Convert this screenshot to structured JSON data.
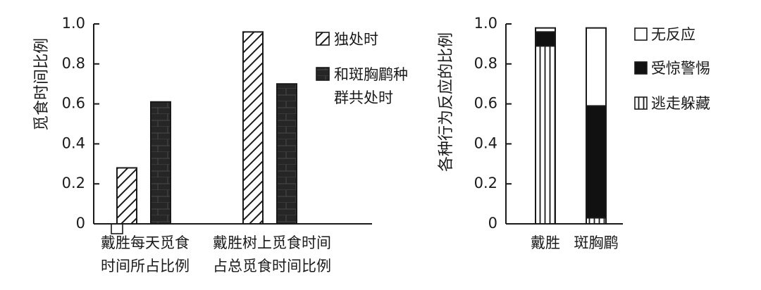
{
  "chart_data": [
    {
      "type": "bar",
      "ylabel": "觅食时间比例",
      "ylim": [
        0,
        1.0
      ],
      "yticks": [
        "0",
        "0.2",
        "0.4",
        "0.6",
        "0.8",
        "1.0"
      ],
      "categories": [
        [
          "戴胜每天觅食",
          "时间所占比例"
        ],
        [
          "戴胜树上觅食时间",
          "占总觅食时间比例"
        ]
      ],
      "series": [
        {
          "name": "独处时",
          "pattern": "diagonal-hatch",
          "values": [
            0.28,
            0.96
          ]
        },
        {
          "name": "和斑胸鹛种群共处时",
          "name_lines": [
            "和斑胸鹛种",
            "群共处时"
          ],
          "pattern": "dark-brick",
          "color": "#262626",
          "values": [
            0.61,
            0.7
          ]
        }
      ],
      "legend": "top-right"
    },
    {
      "type": "bar",
      "stacked": true,
      "ylabel": "各种行为反应的比例",
      "ylim": [
        0,
        1.0
      ],
      "yticks": [
        "0",
        "0.2",
        "0.4",
        "0.6",
        "0.8",
        "1.0"
      ],
      "categories": [
        "戴胜",
        "斑胸鹛"
      ],
      "series": [
        {
          "name": "逃走躲藏",
          "pattern": "vertical-lines",
          "values": [
            0.89,
            0.03
          ]
        },
        {
          "name": "受惊警惕",
          "pattern": "solid-black",
          "color": "#111111",
          "values": [
            0.07,
            0.56
          ]
        },
        {
          "name": "无反应",
          "pattern": "white",
          "color": "#ffffff",
          "values": [
            0.02,
            0.39
          ]
        }
      ],
      "legend": "top-right"
    }
  ]
}
